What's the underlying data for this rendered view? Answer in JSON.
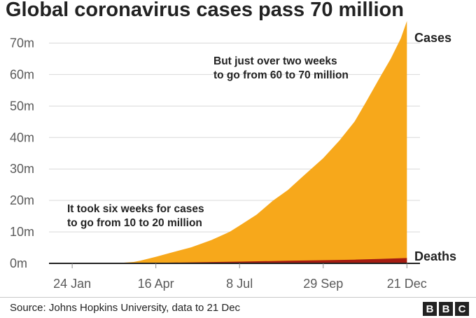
{
  "title": "Global coronavirus cases pass 70 million",
  "source": "Source: Johns Hopkins University, data to 21 Dec",
  "logo": {
    "letters": [
      "B",
      "B",
      "C"
    ]
  },
  "colors": {
    "cases": "#f7a81b",
    "deaths": "#a51c12",
    "grid": "#d9d9d9",
    "axis": "#222222",
    "text": "#222222"
  },
  "chart_data": {
    "type": "area",
    "xlabel": "",
    "ylabel": "",
    "x_ticks": [
      "24 Jan",
      "16 Apr",
      "8 Jul",
      "29 Sep",
      "21 Dec"
    ],
    "y_ticks": [
      "0m",
      "10m",
      "20m",
      "30m",
      "40m",
      "50m",
      "60m",
      "70m"
    ],
    "ylim": [
      0,
      77
    ],
    "xlim": [
      "2020-01-01",
      "2021-01-03"
    ],
    "grid": true,
    "legend": "series labels at right end",
    "series": [
      {
        "name": "Cases",
        "color": "#f7a81b",
        "x": [
          "2020-01-22",
          "2020-02-15",
          "2020-03-10",
          "2020-03-25",
          "2020-04-01",
          "2020-04-16",
          "2020-05-01",
          "2020-05-21",
          "2020-06-10",
          "2020-06-28",
          "2020-07-08",
          "2020-07-25",
          "2020-08-10",
          "2020-08-25",
          "2020-09-10",
          "2020-09-29",
          "2020-10-15",
          "2020-10-30",
          "2020-11-10",
          "2020-11-25",
          "2020-12-05",
          "2020-12-15",
          "2020-12-21"
        ],
        "values": [
          0,
          0.07,
          0.12,
          0.45,
          0.9,
          2.1,
          3.4,
          5.1,
          7.4,
          10.0,
          12.0,
          15.5,
          19.9,
          23.3,
          28.0,
          33.4,
          39.0,
          45.0,
          51.0,
          59.5,
          65.0,
          71.5,
          77.0
        ]
      },
      {
        "name": "Deaths",
        "color": "#a51c12",
        "x": [
          "2020-01-22",
          "2020-03-10",
          "2020-04-16",
          "2020-06-10",
          "2020-07-08",
          "2020-08-25",
          "2020-09-29",
          "2020-10-30",
          "2020-11-25",
          "2020-12-21"
        ],
        "values": [
          0,
          0.004,
          0.15,
          0.42,
          0.55,
          0.82,
          1.0,
          1.18,
          1.42,
          1.7
        ]
      }
    ],
    "annotations": [
      {
        "lines": [
          "But just over two weeks",
          "to go from 60 to 70 million"
        ]
      },
      {
        "lines": [
          "It took six weeks for cases",
          "to go from 10 to 20 million"
        ]
      }
    ]
  }
}
